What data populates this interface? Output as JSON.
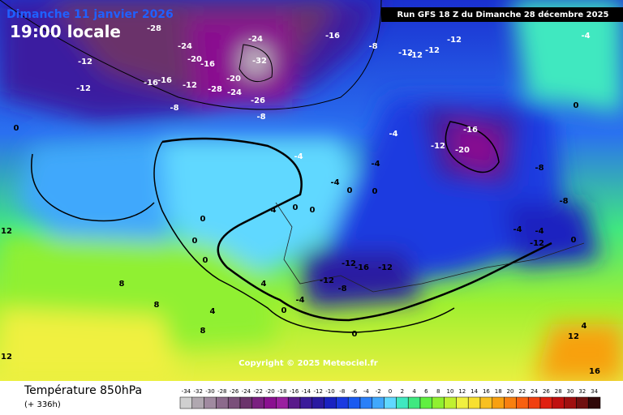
{
  "header": {
    "date": "Dimanche 11 janvier 2026",
    "time": "19:00 locale",
    "run": "Run GFS 18 Z du Dimanche 28 décembre 2025"
  },
  "copyright": "Copyright © 2025 Meteociel.fr",
  "footer": {
    "title": "Température 850hPa",
    "lead": "(+ 336h)"
  },
  "legend": {
    "levels": [
      {
        "value": -34,
        "color": "#d0d0d0"
      },
      {
        "value": -32,
        "color": "#b0a8b0"
      },
      {
        "value": -30,
        "color": "#a08aa0"
      },
      {
        "value": -28,
        "color": "#8c6a8c"
      },
      {
        "value": -26,
        "color": "#7a4f7a"
      },
      {
        "value": -24,
        "color": "#6b336b"
      },
      {
        "value": -22,
        "color": "#7a2080"
      },
      {
        "value": -20,
        "color": "#8a1090"
      },
      {
        "value": -18,
        "color": "#9a20a0"
      },
      {
        "value": -16,
        "color": "#5a1a8a"
      },
      {
        "value": -14,
        "color": "#3a1a9a"
      },
      {
        "value": -12,
        "color": "#2a1aa0"
      },
      {
        "value": -10,
        "color": "#1a22c0"
      },
      {
        "value": -8,
        "color": "#1a3ae0"
      },
      {
        "value": -6,
        "color": "#1a5af0"
      },
      {
        "value": -4,
        "color": "#2a80f8"
      },
      {
        "value": -2,
        "color": "#40a8fc"
      },
      {
        "value": 0,
        "color": "#60d8ff"
      },
      {
        "value": 2,
        "color": "#40e8c0"
      },
      {
        "value": 4,
        "color": "#40e880"
      },
      {
        "value": 6,
        "color": "#60f040"
      },
      {
        "value": 8,
        "color": "#90f030"
      },
      {
        "value": 10,
        "color": "#c0f030"
      },
      {
        "value": 12,
        "color": "#f0f040"
      },
      {
        "value": 14,
        "color": "#f8e030"
      },
      {
        "value": 16,
        "color": "#f8c020"
      },
      {
        "value": 18,
        "color": "#f8a010"
      },
      {
        "value": 20,
        "color": "#f88010"
      },
      {
        "value": 22,
        "color": "#f86010"
      },
      {
        "value": 24,
        "color": "#f04010"
      },
      {
        "value": 26,
        "color": "#e02010"
      },
      {
        "value": 28,
        "color": "#c01010"
      },
      {
        "value": 30,
        "color": "#a01010"
      },
      {
        "value": 32,
        "color": "#701010"
      },
      {
        "value": 34,
        "color": "#300808"
      }
    ]
  },
  "map_labels": [
    -28,
    -24,
    -20,
    -16,
    -24,
    -32,
    -20,
    -28,
    -24,
    -26,
    -12,
    -12,
    -16,
    -16,
    -12,
    -8,
    -8,
    -16,
    -8,
    -12,
    -12,
    -12,
    -12,
    -16,
    -20,
    -12,
    -4,
    -4,
    -4,
    -4,
    0,
    0,
    -4,
    0,
    0,
    0,
    0,
    0,
    -12,
    -16,
    -12,
    -12,
    -8,
    -4,
    0,
    0,
    4,
    4,
    8,
    8,
    8,
    12,
    12,
    12,
    16,
    0,
    0,
    -4,
    -8,
    -8,
    -4,
    -12,
    0,
    -4,
    4
  ]
}
